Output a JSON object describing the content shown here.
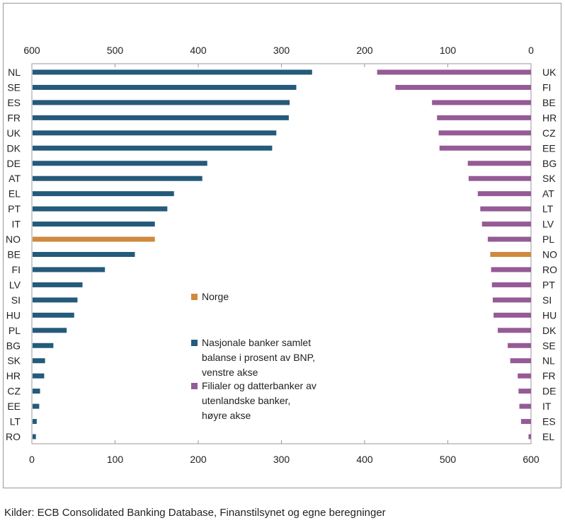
{
  "chart_data": {
    "type": "bar",
    "orientation": "horizontal",
    "left_panel": {
      "categories": [
        "NL",
        "SE",
        "ES",
        "FR",
        "UK",
        "DK",
        "DE",
        "AT",
        "EL",
        "PT",
        "IT",
        "NO",
        "BE",
        "FI",
        "LV",
        "SI",
        "HU",
        "PL",
        "BG",
        "SK",
        "HR",
        "CZ",
        "EE",
        "LT",
        "RO"
      ],
      "values": [
        336,
        317,
        309,
        308,
        293,
        288,
        210,
        204,
        170,
        162,
        147,
        147,
        123,
        87,
        60,
        54,
        50,
        41,
        25,
        15,
        14,
        9,
        8,
        5,
        4
      ],
      "axis": "bottom",
      "xlim": [
        0,
        600
      ],
      "ticks": [
        "0",
        "100",
        "200",
        "300",
        "400",
        "500",
        "600"
      ],
      "color": "#245a7a"
    },
    "right_panel": {
      "categories": [
        "UK",
        "FI",
        "BE",
        "HR",
        "CZ",
        "EE",
        "BG",
        "SK",
        "AT",
        "LT",
        "LV",
        "PL",
        "NO",
        "RO",
        "PT",
        "SI",
        "HU",
        "DK",
        "SE",
        "NL",
        "FR",
        "DE",
        "IT",
        "ES",
        "EL"
      ],
      "values": [
        185,
        163,
        119,
        113,
        111,
        110,
        76,
        75,
        64,
        61,
        59,
        52,
        49,
        48,
        47,
        46,
        45,
        40,
        28,
        25,
        16,
        15,
        14,
        12,
        3
      ],
      "axis": "top",
      "xlim": [
        600,
        0
      ],
      "ticks": [
        "600",
        "500",
        "400",
        "300",
        "200",
        "100",
        "0"
      ],
      "color": "#955b96"
    },
    "highlight": {
      "category": "NO",
      "color": "#cf8a3f"
    },
    "legend": [
      {
        "label": "Norge",
        "color": "#cf8a3f"
      },
      {
        "label": [
          "Nasjonale banker samlet",
          "balanse i prosent av BNP,",
          "venstre akse"
        ],
        "color": "#245a7a"
      },
      {
        "label": [
          "Filialer og datterbanker av",
          "utenlandske banker,",
          "høyre akse"
        ],
        "color": "#955b96"
      }
    ],
    "legend_placement": "center",
    "grid": false
  },
  "source": "Kilder: ECB Consolidated  Banking Database, Finanstilsynet  og egne beregninger"
}
